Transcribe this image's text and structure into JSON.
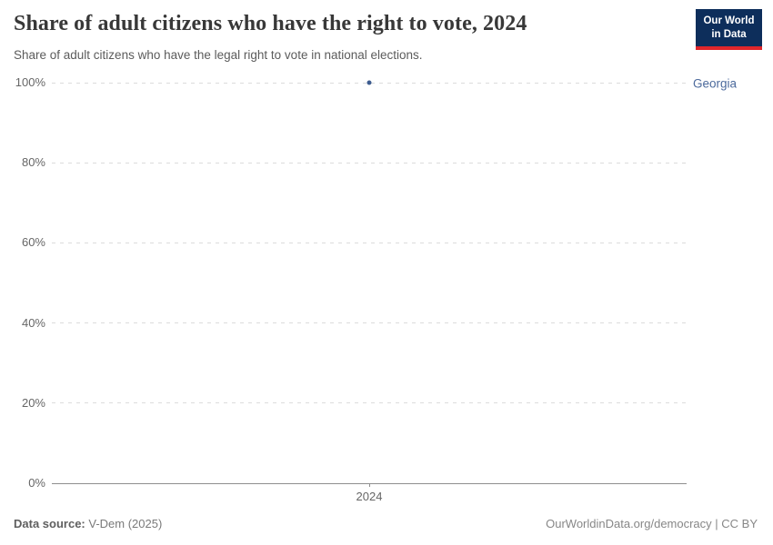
{
  "chart_data": {
    "type": "scatter",
    "title": "Share of adult citizens who have the right to vote, 2024",
    "subtitle": "Share of adult citizens who have the legal right to vote in national elections.",
    "ylim": [
      0,
      100
    ],
    "grid": "horizontal-dashed",
    "legend_position": "entity-label-right-of-plot",
    "y_ticks": [
      {
        "value": 0,
        "label": "0%"
      },
      {
        "value": 20,
        "label": "20%"
      },
      {
        "value": 40,
        "label": "40%"
      },
      {
        "value": 60,
        "label": "60%"
      },
      {
        "value": 80,
        "label": "80%"
      },
      {
        "value": 100,
        "label": "100%"
      }
    ],
    "x_ticks": [
      {
        "value": 2024,
        "label": "2024"
      }
    ],
    "series": [
      {
        "name": "Georgia",
        "color": "#3d5c8f",
        "label_color": "#4c6a9c",
        "points": [
          {
            "x": 2024,
            "y": 100
          }
        ]
      }
    ]
  },
  "logo": {
    "line1": "Our World",
    "line2": "in Data",
    "bg_color": "#0d2e5b",
    "stripe_color": "#e0262b"
  },
  "footer": {
    "source_label": "Data source:",
    "source_value": "V-Dem (2025)",
    "link_text": "OurWorldinData.org/democracy | CC BY"
  },
  "colors": {
    "title_text": "#383838",
    "subtitle_text": "#5b5b5b",
    "tick_text": "#666666",
    "gridline": "#dcdcdc",
    "axis": "#8f8f8f"
  }
}
